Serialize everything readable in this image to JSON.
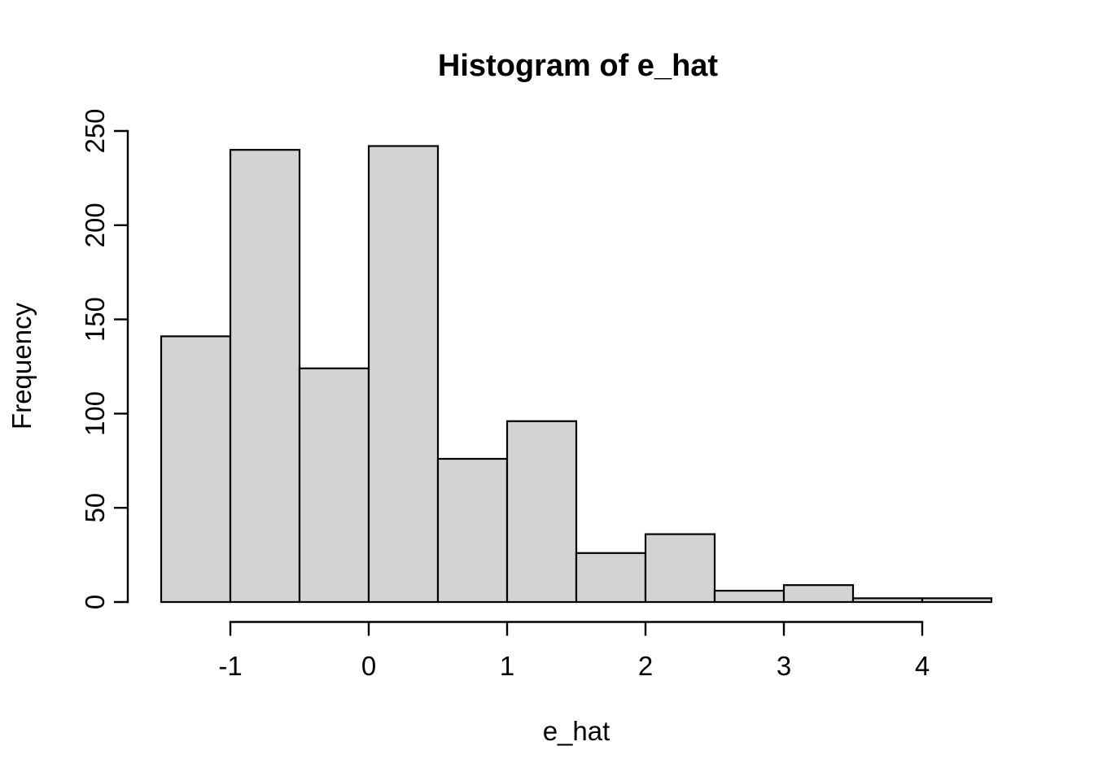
{
  "figure": {
    "title": "Histogram of e_hat",
    "xlabel": "e_hat",
    "ylabel": "Frequency",
    "background": "#ffffff",
    "bar_fill": "#d3d3d3",
    "bar_border": "#000000",
    "axis_color": "#000000"
  },
  "chart_data": {
    "type": "bar",
    "subtype": "histogram",
    "title": "Histogram of e_hat",
    "xlabel": "e_hat",
    "ylabel": "Frequency",
    "bin_start": -1.5,
    "bin_width": 0.5,
    "bin_edges": [
      -1.5,
      -1.0,
      -0.5,
      0.0,
      0.5,
      1.0,
      1.5,
      2.0,
      2.5,
      3.0,
      3.5,
      4.0,
      4.5
    ],
    "counts": [
      141,
      240,
      124,
      242,
      76,
      96,
      26,
      36,
      6,
      9,
      2,
      2
    ],
    "x_ticks": [
      -1,
      0,
      1,
      2,
      3,
      4
    ],
    "y_ticks": [
      0,
      50,
      100,
      150,
      200,
      250
    ],
    "xlim": [
      -1.5,
      4.5
    ],
    "ylim": [
      0,
      250
    ],
    "grid": false,
    "legend": "none",
    "y_tick_labels_rotated": true
  }
}
